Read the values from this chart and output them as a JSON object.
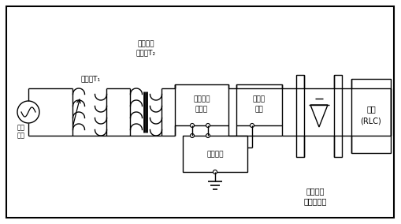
{
  "figsize": [
    5.1,
    2.84
  ],
  "dpi": 100,
  "labels": {
    "source_l1": "工频",
    "source_l2": "电源",
    "t1_label": "调压器T₁",
    "t2_l1": "单相降压",
    "t2_l2": "变压器T₂",
    "box1_l1": "待检电流",
    "box1_l2": "互感器",
    "box2_l1": "同轴分",
    "box2_l2": "流器",
    "box3": "测量装置",
    "box4_l1": "负载",
    "box4_l2": "(RLC)",
    "bottom_l1": "单相全控",
    "bottom_l2": "整流桥负荷"
  }
}
